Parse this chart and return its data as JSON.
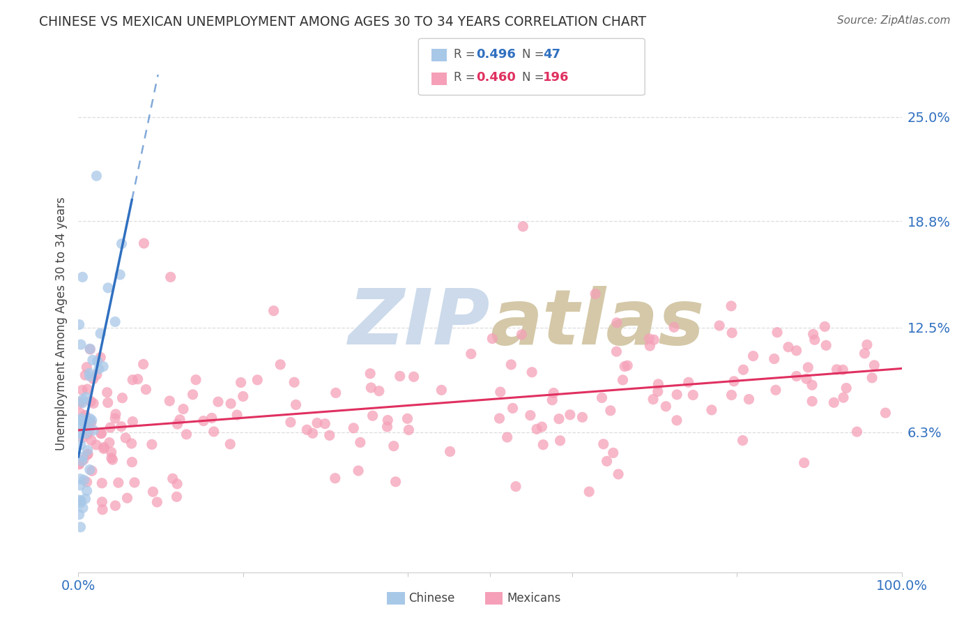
{
  "title": "CHINESE VS MEXICAN UNEMPLOYMENT AMONG AGES 30 TO 34 YEARS CORRELATION CHART",
  "source": "Source: ZipAtlas.com",
  "ylabel": "Unemployment Among Ages 30 to 34 years",
  "ytick_labels": [
    "6.3%",
    "12.5%",
    "18.8%",
    "25.0%"
  ],
  "ytick_values": [
    0.063,
    0.125,
    0.188,
    0.25
  ],
  "xlim": [
    0.0,
    1.0
  ],
  "ylim": [
    -0.02,
    0.275
  ],
  "chinese_R": 0.496,
  "chinese_N": 47,
  "mexican_R": 0.46,
  "mexican_N": 196,
  "chinese_color": "#a8c8e8",
  "mexican_color": "#f5a0b8",
  "chinese_line_color": "#3070c0",
  "mexican_line_color": "#e03060",
  "watermark_zip_color": "#ccdaeb",
  "watermark_atlas_color": "#d4c8a8",
  "title_color": "#333333",
  "source_color": "#666666",
  "background_color": "#ffffff",
  "grid_color": "#dddddd",
  "legend_text_color": "#555555",
  "legend_val_color_blue": "#3070c0",
  "legend_val_color_pink": "#e03060",
  "seed": 42
}
